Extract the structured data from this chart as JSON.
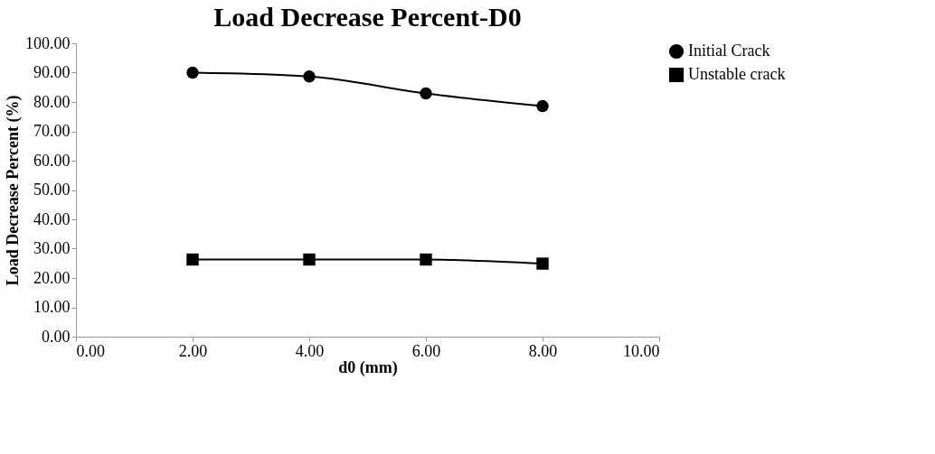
{
  "chart_data": {
    "type": "line",
    "title": "Load Decrease Percent-D0",
    "xlabel": "d0 (mm)",
    "ylabel": "Load Decrease Percent (%)",
    "x": [
      2,
      4,
      6,
      8
    ],
    "series": [
      {
        "name": "Initial Crack",
        "color": "#000000",
        "marker": "circle",
        "values": [
          90.0,
          88.7,
          82.9,
          78.6
        ]
      },
      {
        "name": "Unstable crack",
        "color": "#000000",
        "marker": "square",
        "values": [
          26.3,
          26.3,
          26.3,
          24.9
        ]
      }
    ],
    "xlim": [
      0,
      10
    ],
    "xticks": [
      {
        "value": 0,
        "label": "0.00"
      },
      {
        "value": 2,
        "label": "2.00"
      },
      {
        "value": 4,
        "label": "4.00"
      },
      {
        "value": 6,
        "label": "6.00"
      },
      {
        "value": 8,
        "label": "8.00"
      },
      {
        "value": 10,
        "label": "10.00"
      }
    ],
    "ylim": [
      0,
      100
    ],
    "yticks": [
      {
        "value": 0,
        "label": "0.00"
      },
      {
        "value": 10,
        "label": "10.00"
      },
      {
        "value": 20,
        "label": "20.00"
      },
      {
        "value": 30,
        "label": "30.00"
      },
      {
        "value": 40,
        "label": "40.00"
      },
      {
        "value": 50,
        "label": "50.00"
      },
      {
        "value": 60,
        "label": "60.00"
      },
      {
        "value": 70,
        "label": "70.00"
      },
      {
        "value": 80,
        "label": "80.00"
      },
      {
        "value": 90,
        "label": "90.00"
      },
      {
        "value": 100,
        "label": "100.00"
      }
    ],
    "grid": false,
    "legend": "right",
    "line_style": "solid"
  }
}
